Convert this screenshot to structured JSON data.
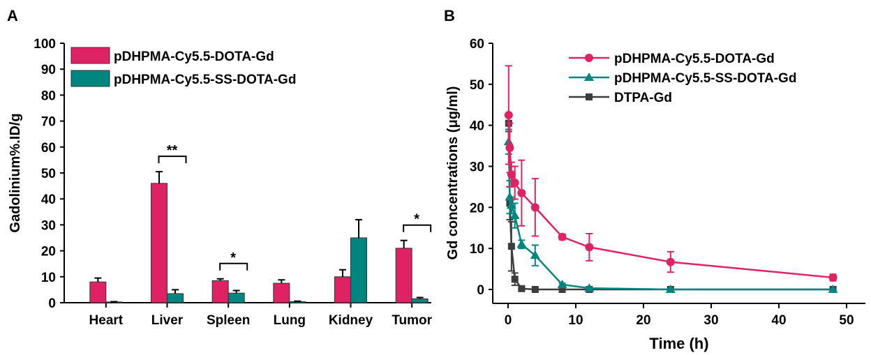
{
  "chart_data": [
    {
      "panel": "A",
      "type": "bar",
      "ylabel": "Gadolinium%.ID/g",
      "ylim": [
        0,
        100
      ],
      "yticks": [
        0,
        10,
        20,
        30,
        40,
        50,
        60,
        70,
        80,
        90,
        100
      ],
      "categories": [
        "Heart",
        "Liver",
        "Spleen",
        "Lung",
        "Kidney",
        "Tumor"
      ],
      "series": [
        {
          "name": "pDHPMA-Cy5.5-DOTA-Gd",
          "color": "#DE2263",
          "values": [
            8,
            46,
            8.5,
            7.5,
            10,
            21
          ],
          "errors": [
            1.5,
            4.5,
            0.7,
            1.3,
            2.7,
            3
          ]
        },
        {
          "name": "pDHPMA-Cy5.5-SS-DOTA-Gd",
          "color": "#00857F",
          "values": [
            0.3,
            3.5,
            3.7,
            0.4,
            25,
            1.5
          ],
          "errors": [
            0.1,
            1.5,
            1,
            0.2,
            7,
            0.5
          ]
        }
      ],
      "annotations": [
        {
          "category": "Liver",
          "text": "**"
        },
        {
          "category": "Spleen",
          "text": "*"
        },
        {
          "category": "Tumor",
          "text": "*"
        }
      ]
    },
    {
      "panel": "B",
      "type": "line",
      "xlabel": "Time (h)",
      "ylabel": "Gd concentrations (μg/ml)",
      "xlim": [
        0,
        50
      ],
      "ylim": [
        0,
        60
      ],
      "xticks": [
        0,
        10,
        20,
        30,
        40,
        50
      ],
      "yticks": [
        0,
        10,
        20,
        30,
        40,
        50,
        60
      ],
      "x": [
        0.083,
        0.25,
        0.5,
        1,
        2,
        4,
        8,
        12,
        24,
        48
      ],
      "series": [
        {
          "name": "pDHPMA-Cy5.5-DOTA-Gd",
          "color": "#DE2263",
          "marker": "circle",
          "values": [
            42.5,
            34.5,
            28,
            26,
            23.5,
            20,
            12.8,
            10.3,
            6.7,
            2.9
          ],
          "errors": [
            12,
            6,
            3,
            4,
            8,
            7,
            0.7,
            3.3,
            2.5,
            0.8
          ]
        },
        {
          "name": "pDHPMA-Cy5.5-SS-DOTA-Gd",
          "color": "#00857F",
          "marker": "triangle",
          "values": [
            36,
            22.5,
            20.5,
            18,
            11,
            8.3,
            1.2,
            0.3,
            0,
            0
          ],
          "errors": [
            3,
            4,
            2,
            3,
            1,
            2.5,
            0.3,
            0.2,
            0,
            0
          ]
        },
        {
          "name": "DTPA-Gd",
          "color": "#3C3C3C",
          "marker": "square",
          "values": [
            40.5,
            21,
            10.5,
            2.5,
            0.2,
            0,
            0,
            0,
            0,
            0
          ],
          "errors": [
            2,
            4,
            6,
            1.5,
            0.1,
            0,
            0,
            0,
            0,
            0
          ]
        }
      ]
    }
  ],
  "labels": {
    "panelA": "A",
    "panelB": "B"
  }
}
